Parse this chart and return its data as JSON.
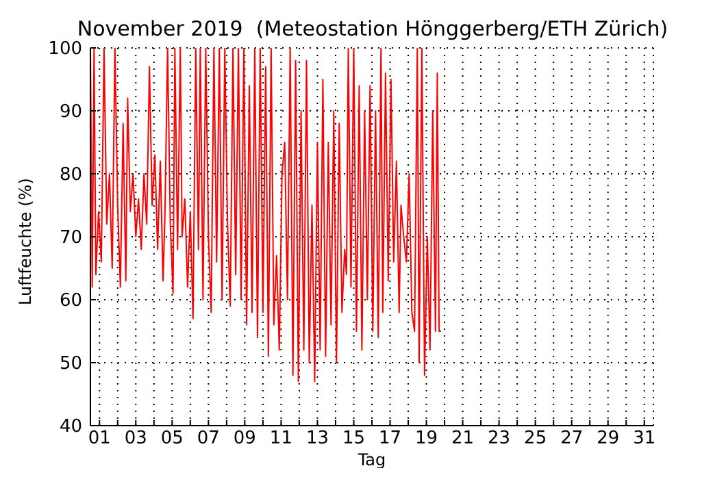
{
  "chart_data": {
    "type": "line",
    "title": "November 2019  (Meteostation Hönggerberg/ETH Zürich)",
    "xlabel": "Tag",
    "ylabel": "Luftfeuchte (%)",
    "x": [
      0.5,
      0.6,
      0.7,
      0.8,
      0.95,
      1.1,
      1.25,
      1.4,
      1.55,
      1.7,
      1.85,
      2.0,
      2.15,
      2.3,
      2.45,
      2.55,
      2.7,
      2.85,
      3.0,
      3.15,
      3.3,
      3.45,
      3.6,
      3.75,
      3.9,
      4.05,
      4.2,
      4.35,
      4.5,
      4.6,
      4.75,
      4.9,
      5.05,
      5.15,
      5.3,
      5.45,
      5.55,
      5.7,
      5.85,
      6.0,
      6.15,
      6.3,
      6.45,
      6.55,
      6.7,
      6.85,
      7.0,
      7.15,
      7.3,
      7.45,
      7.6,
      7.75,
      7.9,
      8.05,
      8.2,
      8.35,
      8.5,
      8.65,
      8.8,
      8.95,
      9.1,
      9.25,
      9.4,
      9.55,
      9.7,
      9.85,
      10.0,
      10.15,
      10.3,
      10.45,
      10.6,
      10.75,
      10.9,
      11.05,
      11.2,
      11.35,
      11.5,
      11.65,
      11.8,
      11.95,
      12.1,
      12.25,
      12.4,
      12.55,
      12.7,
      12.85,
      13.0,
      13.15,
      13.3,
      13.45,
      13.6,
      13.75,
      13.9,
      14.05,
      14.2,
      14.35,
      14.5,
      14.6,
      14.7,
      14.85,
      15.0,
      15.15,
      15.3,
      15.45,
      15.6,
      15.75,
      15.9,
      16.05,
      16.2,
      16.35,
      16.5,
      16.6,
      16.75,
      16.9,
      17.05,
      17.2,
      17.35,
      17.5,
      17.6,
      17.75,
      17.9,
      18.05,
      18.2,
      18.35,
      18.5,
      18.6,
      18.75,
      18.9,
      19.05,
      19.2,
      19.35,
      19.5,
      19.6,
      19.7,
      19.8
    ],
    "series": [
      {
        "color": "#ff0000",
        "values": [
          100,
          62,
          100,
          64,
          74,
          66,
          100,
          72,
          80,
          65,
          100,
          75,
          62,
          88,
          63,
          92,
          74,
          80,
          70,
          76,
          68,
          80,
          72,
          97,
          75,
          83,
          68,
          82,
          63,
          73,
          100,
          72,
          61,
          100,
          68,
          100,
          70,
          76,
          62,
          74,
          57,
          100,
          68,
          100,
          60,
          100,
          70,
          58,
          100,
          66,
          100,
          60,
          100,
          72,
          59,
          100,
          64,
          100,
          60,
          100,
          56,
          94,
          58,
          100,
          54,
          100,
          58,
          97,
          51,
          100,
          56,
          67,
          52,
          80,
          85,
          60,
          100,
          48,
          98,
          47,
          90,
          52,
          98,
          50,
          75,
          47,
          85,
          52,
          95,
          51,
          85,
          56,
          90,
          50,
          88,
          58,
          68,
          64,
          100,
          62,
          100,
          55,
          94,
          52,
          90,
          60,
          94,
          55,
          90,
          54,
          100,
          58,
          96,
          63,
          95,
          66,
          82,
          58,
          75,
          70,
          66,
          80,
          58,
          55,
          100,
          50,
          100,
          48,
          70,
          52,
          90,
          55,
          96,
          55,
          55
        ]
      }
    ],
    "xlim": [
      0.5,
      31.5
    ],
    "xticks": [
      {
        "value": 1,
        "label": "01"
      },
      {
        "value": 2,
        "label": null
      },
      {
        "value": 3,
        "label": "03"
      },
      {
        "value": 4,
        "label": null
      },
      {
        "value": 5,
        "label": "05"
      },
      {
        "value": 6,
        "label": null
      },
      {
        "value": 7,
        "label": "07"
      },
      {
        "value": 8,
        "label": null
      },
      {
        "value": 9,
        "label": "09"
      },
      {
        "value": 10,
        "label": null
      },
      {
        "value": 11,
        "label": "11"
      },
      {
        "value": 12,
        "label": null
      },
      {
        "value": 13,
        "label": "13"
      },
      {
        "value": 14,
        "label": null
      },
      {
        "value": 15,
        "label": "15"
      },
      {
        "value": 16,
        "label": null
      },
      {
        "value": 17,
        "label": "17"
      },
      {
        "value": 18,
        "label": null
      },
      {
        "value": 19,
        "label": "19"
      },
      {
        "value": 20,
        "label": null
      },
      {
        "value": 21,
        "label": "21"
      },
      {
        "value": 22,
        "label": null
      },
      {
        "value": 23,
        "label": "23"
      },
      {
        "value": 24,
        "label": null
      },
      {
        "value": 25,
        "label": "25"
      },
      {
        "value": 26,
        "label": null
      },
      {
        "value": 27,
        "label": "27"
      },
      {
        "value": 28,
        "label": null
      },
      {
        "value": 29,
        "label": "29"
      },
      {
        "value": 30,
        "label": null
      },
      {
        "value": 31,
        "label": "31"
      }
    ],
    "ylim": [
      40,
      100
    ],
    "yticks": [
      40,
      50,
      60,
      70,
      80,
      90,
      100
    ],
    "grid": true,
    "marker": "none",
    "line_style": "solid"
  }
}
